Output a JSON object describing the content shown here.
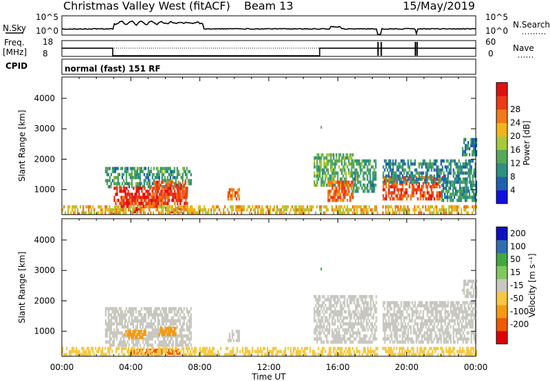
{
  "header": {
    "title": "Christmas Valley West (fitACF)",
    "beam": "Beam 13",
    "date": "15/May/2019"
  },
  "status_panels": {
    "nsky": {
      "label": "N.Sky",
      "ticks": [
        "10^5",
        "10^0"
      ],
      "right_ticks": [
        "10^5",
        "10^0"
      ],
      "right_label": "N.Search"
    },
    "freq": {
      "label_line1": "Freq.",
      "label_line2": "[MHz]",
      "ticks": [
        "18",
        "8"
      ],
      "right_ticks": [
        "60",
        "0"
      ],
      "right_label": "Nave"
    },
    "cpid": {
      "label": "CPID",
      "text": "normal (fast) 151 RF"
    }
  },
  "colors": {
    "power_scale": [
      "#1010e0",
      "#1f60b0",
      "#2f8f7e",
      "#56a85a",
      "#a8c83a",
      "#f3b41b",
      "#f07a15",
      "#ee3a16",
      "#e01010"
    ],
    "velocity_scale": [
      "#e00000",
      "#f05a00",
      "#f59a10",
      "#f8c840",
      "#c8c8c0",
      "#80c860",
      "#40a840",
      "#2f6fb0",
      "#1010c0"
    ],
    "ground_gray": "#c8c8c0"
  },
  "chart_data": [
    {
      "type": "heatmap",
      "name": "power",
      "xlabel": "",
      "ylabel": "Slant Range [km]",
      "xlim": [
        0,
        24
      ],
      "ylim": [
        180,
        4700
      ],
      "yticks": [
        "1000",
        "2000",
        "3000",
        "4000"
      ],
      "colorbar": {
        "label": "Power [dB]",
        "ticks": [
          "4",
          "8",
          "12",
          "16",
          "20",
          "24",
          "28"
        ],
        "range": [
          0,
          30
        ]
      },
      "patches": [
        {
          "t0": 2.5,
          "t1": 7.5,
          "r0": 1050,
          "r1": 1700,
          "v": 10
        },
        {
          "t0": 3.0,
          "t1": 7.3,
          "r0": 500,
          "r1": 1000,
          "v": 27
        },
        {
          "t0": 3.4,
          "t1": 5.8,
          "r0": 400,
          "r1": 700,
          "v": 25
        },
        {
          "t0": 4.1,
          "t1": 4.6,
          "r0": 230,
          "r1": 420,
          "v": 28
        },
        {
          "t0": 5.2,
          "t1": 7.2,
          "r0": 700,
          "r1": 1200,
          "v": 24
        },
        {
          "t0": 6.0,
          "t1": 7.0,
          "r0": 230,
          "r1": 420,
          "v": 26
        },
        {
          "t0": 9.6,
          "t1": 10.3,
          "r0": 650,
          "r1": 1000,
          "v": 22
        },
        {
          "t0": 14.6,
          "t1": 16.9,
          "r0": 1100,
          "r1": 2100,
          "v": 12
        },
        {
          "t0": 15.4,
          "t1": 16.9,
          "r0": 600,
          "r1": 1200,
          "v": 22
        },
        {
          "t0": 16.8,
          "t1": 18.2,
          "r0": 900,
          "r1": 1900,
          "v": 10
        },
        {
          "t0": 18.6,
          "t1": 22.1,
          "r0": 650,
          "r1": 1350,
          "v": 24
        },
        {
          "t0": 18.6,
          "t1": 24.0,
          "r0": 1200,
          "r1": 1900,
          "v": 8
        },
        {
          "t0": 22.0,
          "t1": 24.0,
          "r0": 600,
          "r1": 1200,
          "v": 9
        },
        {
          "t0": 23.2,
          "t1": 24.0,
          "r0": 2100,
          "r1": 2600,
          "v": 8
        }
      ],
      "groundband": {
        "r0": 190,
        "r1": 430,
        "v": 18
      }
    },
    {
      "type": "heatmap",
      "name": "velocity",
      "xlabel": "Time UT",
      "ylabel": "Slant Range [km]",
      "xlim": [
        0,
        24
      ],
      "ylim": [
        180,
        4700
      ],
      "yticks": [
        "1000",
        "2000",
        "3000",
        "4000"
      ],
      "xticks": [
        "00:00",
        "04:00",
        "08:00",
        "12:00",
        "16:00",
        "20:00",
        "00:00"
      ],
      "colorbar": {
        "label": "Velocity [m s⁻¹]",
        "ticks": [
          "200",
          "100",
          "50",
          "15",
          "-15",
          "-50",
          "-100",
          "-200"
        ]
      },
      "patches": [
        {
          "t0": 2.5,
          "t1": 7.5,
          "r0": 500,
          "r1": 1700,
          "v": 0
        },
        {
          "t0": 3.6,
          "t1": 4.8,
          "r0": 750,
          "r1": 1000,
          "v": -60
        },
        {
          "t0": 5.6,
          "t1": 6.6,
          "r0": 850,
          "r1": 1050,
          "v": -60
        },
        {
          "t0": 4.0,
          "t1": 6.8,
          "r0": 230,
          "r1": 420,
          "v": -150
        },
        {
          "t0": 9.6,
          "t1": 10.3,
          "r0": 650,
          "r1": 1000,
          "v": 0
        },
        {
          "t0": 14.6,
          "t1": 18.2,
          "r0": 600,
          "r1": 2100,
          "v": 0
        },
        {
          "t0": 18.6,
          "t1": 24.0,
          "r0": 600,
          "r1": 1900,
          "v": 0
        },
        {
          "t0": 23.2,
          "t1": 24.0,
          "r0": 2100,
          "r1": 2600,
          "v": 0
        }
      ],
      "groundband": {
        "r0": 190,
        "r1": 430,
        "v": -40
      }
    }
  ],
  "gaps_hours": [
    [
      18.3,
      18.55
    ]
  ],
  "freq_steps": [
    {
      "t0": 0.0,
      "t1": 2.95,
      "v": 15
    },
    {
      "t0": 2.95,
      "t1": 14.95,
      "v": 8.6
    },
    {
      "t0": 14.95,
      "t1": 24.0,
      "v": 15
    }
  ]
}
